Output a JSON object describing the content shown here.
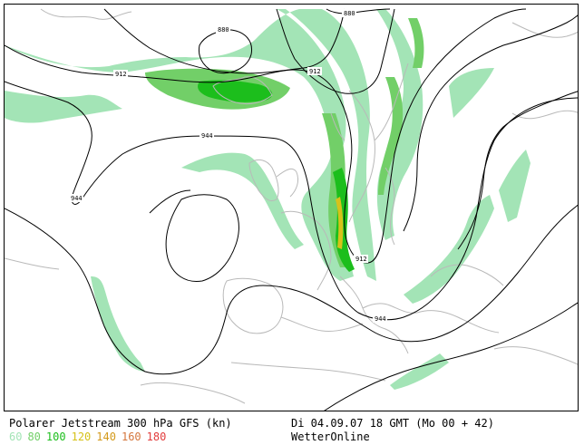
{
  "caption": {
    "title": "Polarer Jetstream 300 hPa GFS (kn)",
    "valid_time": "Di 04.09.07 18 GMT (Mo 00 + 42)",
    "source": "WetterOnline"
  },
  "scale": [
    {
      "label": "60",
      "color": "#a3e4b6"
    },
    {
      "label": "80",
      "color": "#72cf68"
    },
    {
      "label": "100",
      "color": "#1cbe1c"
    },
    {
      "label": "120",
      "color": "#d6c21a"
    },
    {
      "label": "140",
      "color": "#d39a1c"
    },
    {
      "label": "160",
      "color": "#d4763c"
    },
    {
      "label": "180",
      "color": "#e23c3c"
    }
  ],
  "contour_labels": [
    "880",
    "880",
    "912",
    "912",
    "944",
    "944",
    "912",
    "944"
  ],
  "colors": {
    "band60": "#a3e4b6",
    "band80": "#72cf68",
    "band100": "#1cbe1c",
    "band120": "#d6c21a",
    "contour": "#000000",
    "coast": "#b9b9b9"
  }
}
